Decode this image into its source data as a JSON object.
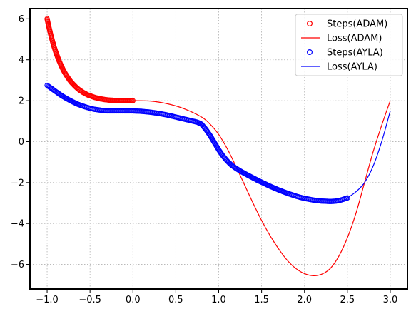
{
  "chart_data": {
    "type": "line",
    "title": "",
    "xlabel": "",
    "ylabel": "",
    "xlim": [
      -1.2,
      3.2
    ],
    "ylim": [
      -7.2,
      6.5
    ],
    "xticks": [
      -1.0,
      -0.5,
      0.0,
      0.5,
      1.0,
      1.5,
      2.0,
      2.5,
      3.0
    ],
    "xtick_labels": [
      "−1.0",
      "−0.5",
      "0.0",
      "0.5",
      "1.0",
      "1.5",
      "2.0",
      "2.5",
      "3.0"
    ],
    "yticks": [
      -6,
      -4,
      -2,
      0,
      2,
      4,
      6
    ],
    "ytick_labels": [
      "−6",
      "−4",
      "−2",
      "0",
      "2",
      "4",
      "6"
    ],
    "grid": true,
    "legend_position": "top-right",
    "series": [
      {
        "name": "Steps(ADAM)",
        "kind": "scatter",
        "color": "#ff0000",
        "x": [
          -1.0,
          -0.98,
          -0.96,
          -0.94,
          -0.92,
          -0.9,
          -0.88,
          -0.86,
          -0.84,
          -0.82,
          -0.8,
          -0.78,
          -0.76,
          -0.74,
          -0.72,
          -0.7,
          -0.68,
          -0.66,
          -0.64,
          -0.62,
          -0.6,
          -0.58,
          -0.56,
          -0.54,
          -0.52,
          -0.5,
          -0.48,
          -0.46,
          -0.44,
          -0.42,
          -0.4,
          -0.38,
          -0.36,
          -0.34,
          -0.32,
          -0.3,
          -0.28,
          -0.26,
          -0.24,
          -0.22,
          -0.2,
          -0.18,
          -0.16,
          -0.14,
          -0.12,
          -0.1,
          -0.08,
          -0.06,
          -0.04,
          -0.02,
          0.0
        ],
        "y": [
          6.0,
          5.61,
          5.26,
          4.94,
          4.65,
          4.39,
          4.16,
          3.94,
          3.75,
          3.57,
          3.41,
          3.27,
          3.14,
          3.02,
          2.91,
          2.82,
          2.73,
          2.65,
          2.58,
          2.51,
          2.46,
          2.4,
          2.36,
          2.31,
          2.27,
          2.24,
          2.21,
          2.18,
          2.15,
          2.13,
          2.11,
          2.09,
          2.08,
          2.06,
          2.05,
          2.04,
          2.03,
          2.02,
          2.02,
          2.01,
          2.01,
          2.0,
          2.0,
          2.0,
          2.0,
          2.0,
          2.0,
          2.0,
          2.0,
          2.0,
          2.0
        ]
      },
      {
        "name": "Loss(ADAM)",
        "kind": "line",
        "color": "#ff0000",
        "x": [
          0.0,
          0.2,
          0.4,
          0.6,
          0.8,
          0.9,
          1.0,
          1.1,
          1.2,
          1.3,
          1.4,
          1.5,
          1.6,
          1.7,
          1.8,
          1.9,
          2.0,
          2.1,
          2.2,
          2.3,
          2.4,
          2.5,
          2.6,
          2.7,
          2.8,
          2.9,
          3.0
        ],
        "y": [
          2.0,
          1.98,
          1.85,
          1.6,
          1.2,
          0.85,
          0.35,
          -0.35,
          -1.2,
          -2.1,
          -3.0,
          -3.85,
          -4.6,
          -5.25,
          -5.8,
          -6.2,
          -6.45,
          -6.55,
          -6.48,
          -6.2,
          -5.6,
          -4.7,
          -3.5,
          -2.0,
          -0.5,
          0.8,
          2.0
        ]
      },
      {
        "name": "Steps(AYLA)",
        "kind": "scatter",
        "color": "#0000ff",
        "x": [
          -1.0,
          -0.95,
          -0.9,
          -0.85,
          -0.8,
          -0.75,
          -0.7,
          -0.65,
          -0.6,
          -0.55,
          -0.5,
          -0.45,
          -0.4,
          -0.35,
          -0.3,
          -0.25,
          -0.2,
          -0.15,
          -0.1,
          -0.05,
          0.0,
          0.05,
          0.1,
          0.15,
          0.2,
          0.25,
          0.3,
          0.35,
          0.4,
          0.45,
          0.5,
          0.55,
          0.6,
          0.65,
          0.7,
          0.75,
          0.8,
          0.85,
          0.9,
          0.95,
          1.0,
          1.05,
          1.1,
          1.15,
          1.2,
          1.25,
          1.3,
          1.35,
          1.4,
          1.45,
          1.5,
          1.55,
          1.6,
          1.65,
          1.7,
          1.75,
          1.8,
          1.85,
          1.9,
          1.95,
          2.0,
          2.05,
          2.1,
          2.15,
          2.2,
          2.25,
          2.3,
          2.35,
          2.4,
          2.45,
          2.5
        ],
        "y": [
          2.75,
          2.6,
          2.45,
          2.3,
          2.17,
          2.05,
          1.94,
          1.84,
          1.76,
          1.69,
          1.63,
          1.58,
          1.55,
          1.52,
          1.5,
          1.5,
          1.5,
          1.5,
          1.5,
          1.5,
          1.5,
          1.49,
          1.48,
          1.46,
          1.44,
          1.41,
          1.38,
          1.34,
          1.3,
          1.25,
          1.2,
          1.15,
          1.1,
          1.05,
          1.0,
          0.95,
          0.85,
          0.6,
          0.3,
          -0.05,
          -0.4,
          -0.7,
          -0.95,
          -1.15,
          -1.3,
          -1.43,
          -1.55,
          -1.66,
          -1.77,
          -1.88,
          -1.98,
          -2.08,
          -2.18,
          -2.27,
          -2.36,
          -2.44,
          -2.52,
          -2.59,
          -2.66,
          -2.72,
          -2.77,
          -2.81,
          -2.85,
          -2.88,
          -2.9,
          -2.91,
          -2.92,
          -2.91,
          -2.88,
          -2.82,
          -2.75
        ]
      },
      {
        "name": "Loss(AYLA)",
        "kind": "line",
        "color": "#0000ff",
        "x": [
          2.5,
          2.6,
          2.7,
          2.8,
          2.9,
          3.0
        ],
        "y": [
          -2.75,
          -2.45,
          -2.0,
          -1.2,
          0.0,
          1.5
        ]
      }
    ]
  }
}
